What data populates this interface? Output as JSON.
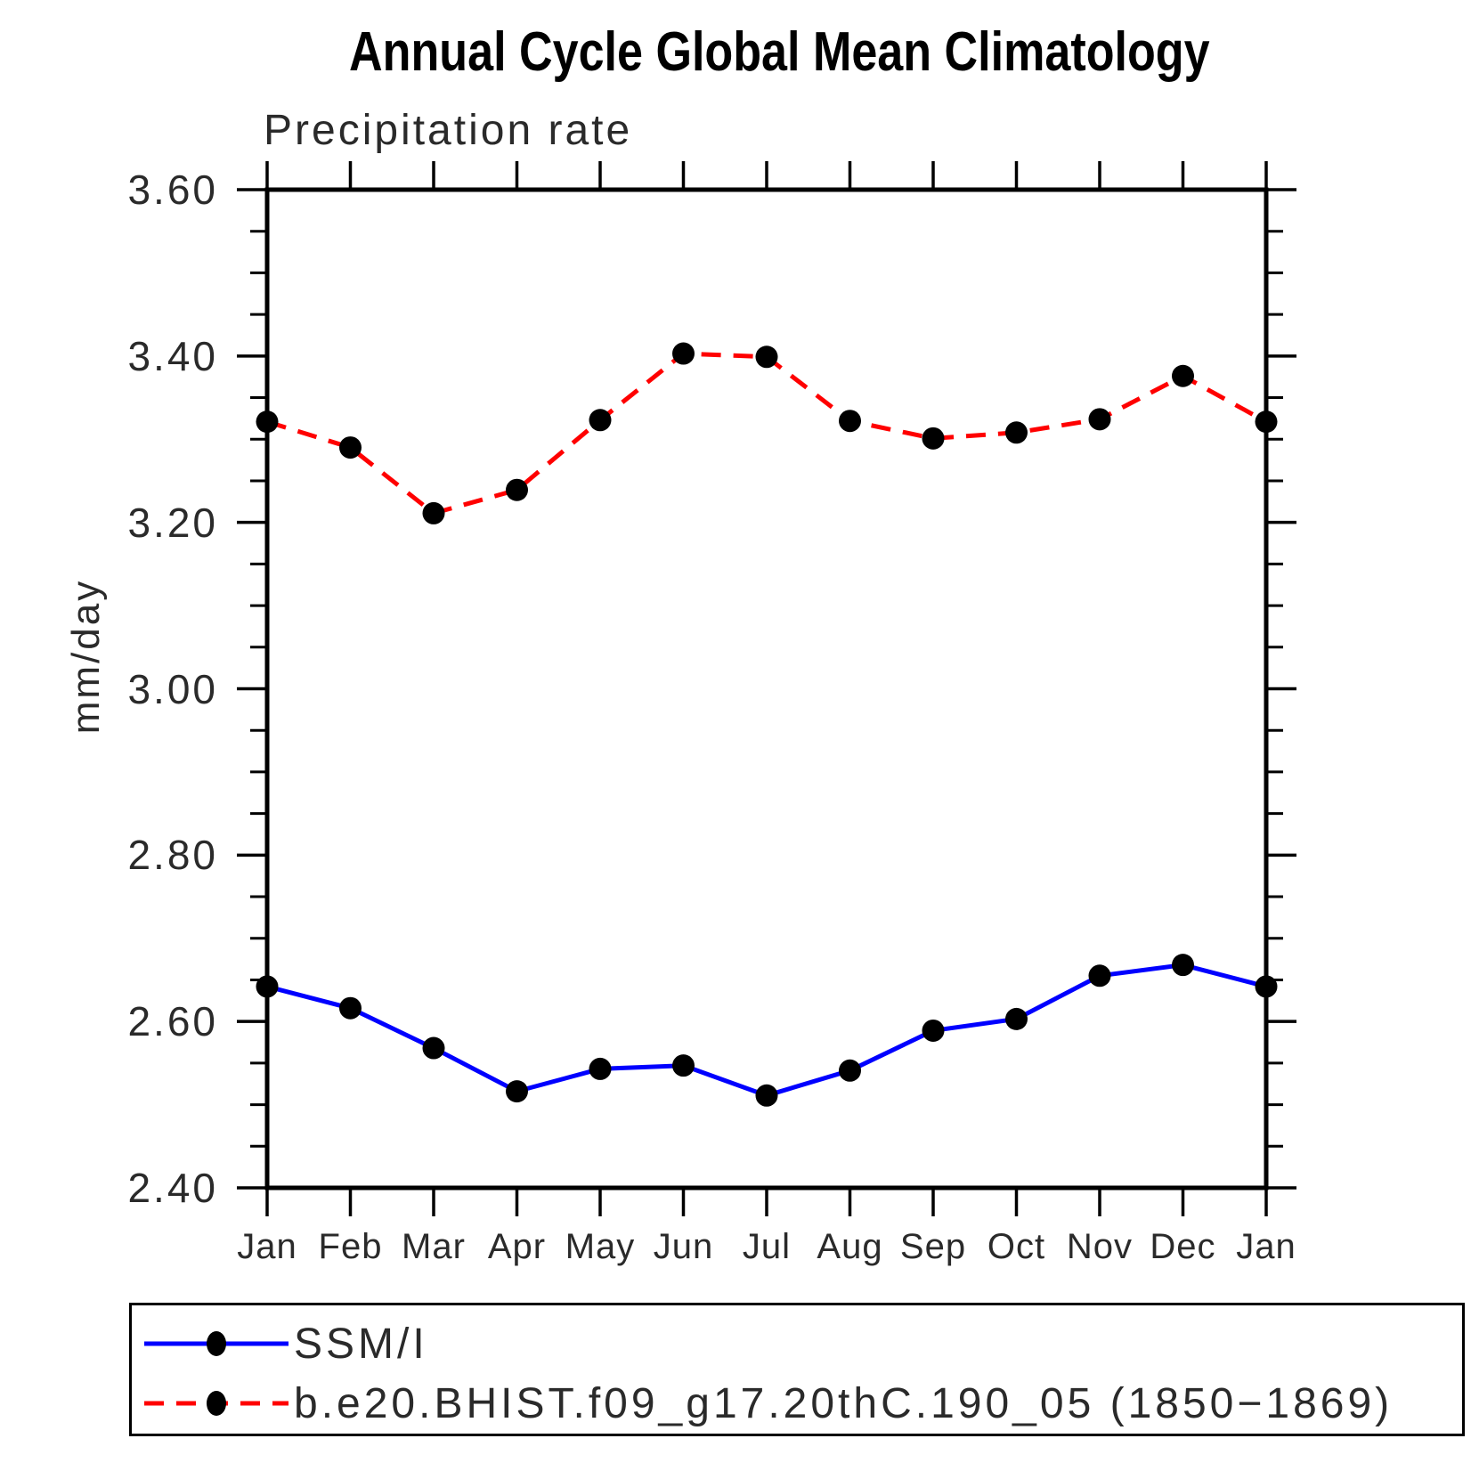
{
  "page": {
    "background": "#ffffff"
  },
  "chart_data": {
    "type": "line",
    "title": "Annual Cycle Global Mean Climatology",
    "subtitle": "Precipitation rate",
    "ylabel": "mm/day",
    "categories": [
      "Jan",
      "Feb",
      "Mar",
      "Apr",
      "May",
      "Jun",
      "Jul",
      "Aug",
      "Sep",
      "Oct",
      "Nov",
      "Dec",
      "Jan"
    ],
    "ylim": [
      2.4,
      3.6
    ],
    "ytick_values": [
      2.4,
      2.6,
      2.8,
      3.0,
      3.2,
      3.4,
      3.6
    ],
    "ytick_labels": [
      "2.40",
      "2.60",
      "2.80",
      "3.00",
      "3.20",
      "3.40",
      "3.60"
    ],
    "ytick_minor_step": 0.05,
    "grid": false,
    "legend_position": "bottom-left-box",
    "axis_color": "#000000",
    "series": [
      {
        "name": "SSM/I",
        "color": "#0000ff",
        "line_style": "solid",
        "marker": "filled-circle",
        "marker_color": "#000000",
        "values": [
          2.642,
          2.616,
          2.568,
          2.516,
          2.543,
          2.547,
          2.511,
          2.541,
          2.589,
          2.603,
          2.655,
          2.668,
          2.642
        ]
      },
      {
        "name": "b.e20.BHIST.f09_g17.20thC.190_05 (1850−1869)",
        "color": "#ff0000",
        "line_style": "dashed",
        "marker": "filled-circle",
        "marker_color": "#000000",
        "values": [
          3.321,
          3.29,
          3.211,
          3.239,
          3.323,
          3.403,
          3.399,
          3.322,
          3.301,
          3.308,
          3.324,
          3.376,
          3.321
        ]
      }
    ]
  }
}
